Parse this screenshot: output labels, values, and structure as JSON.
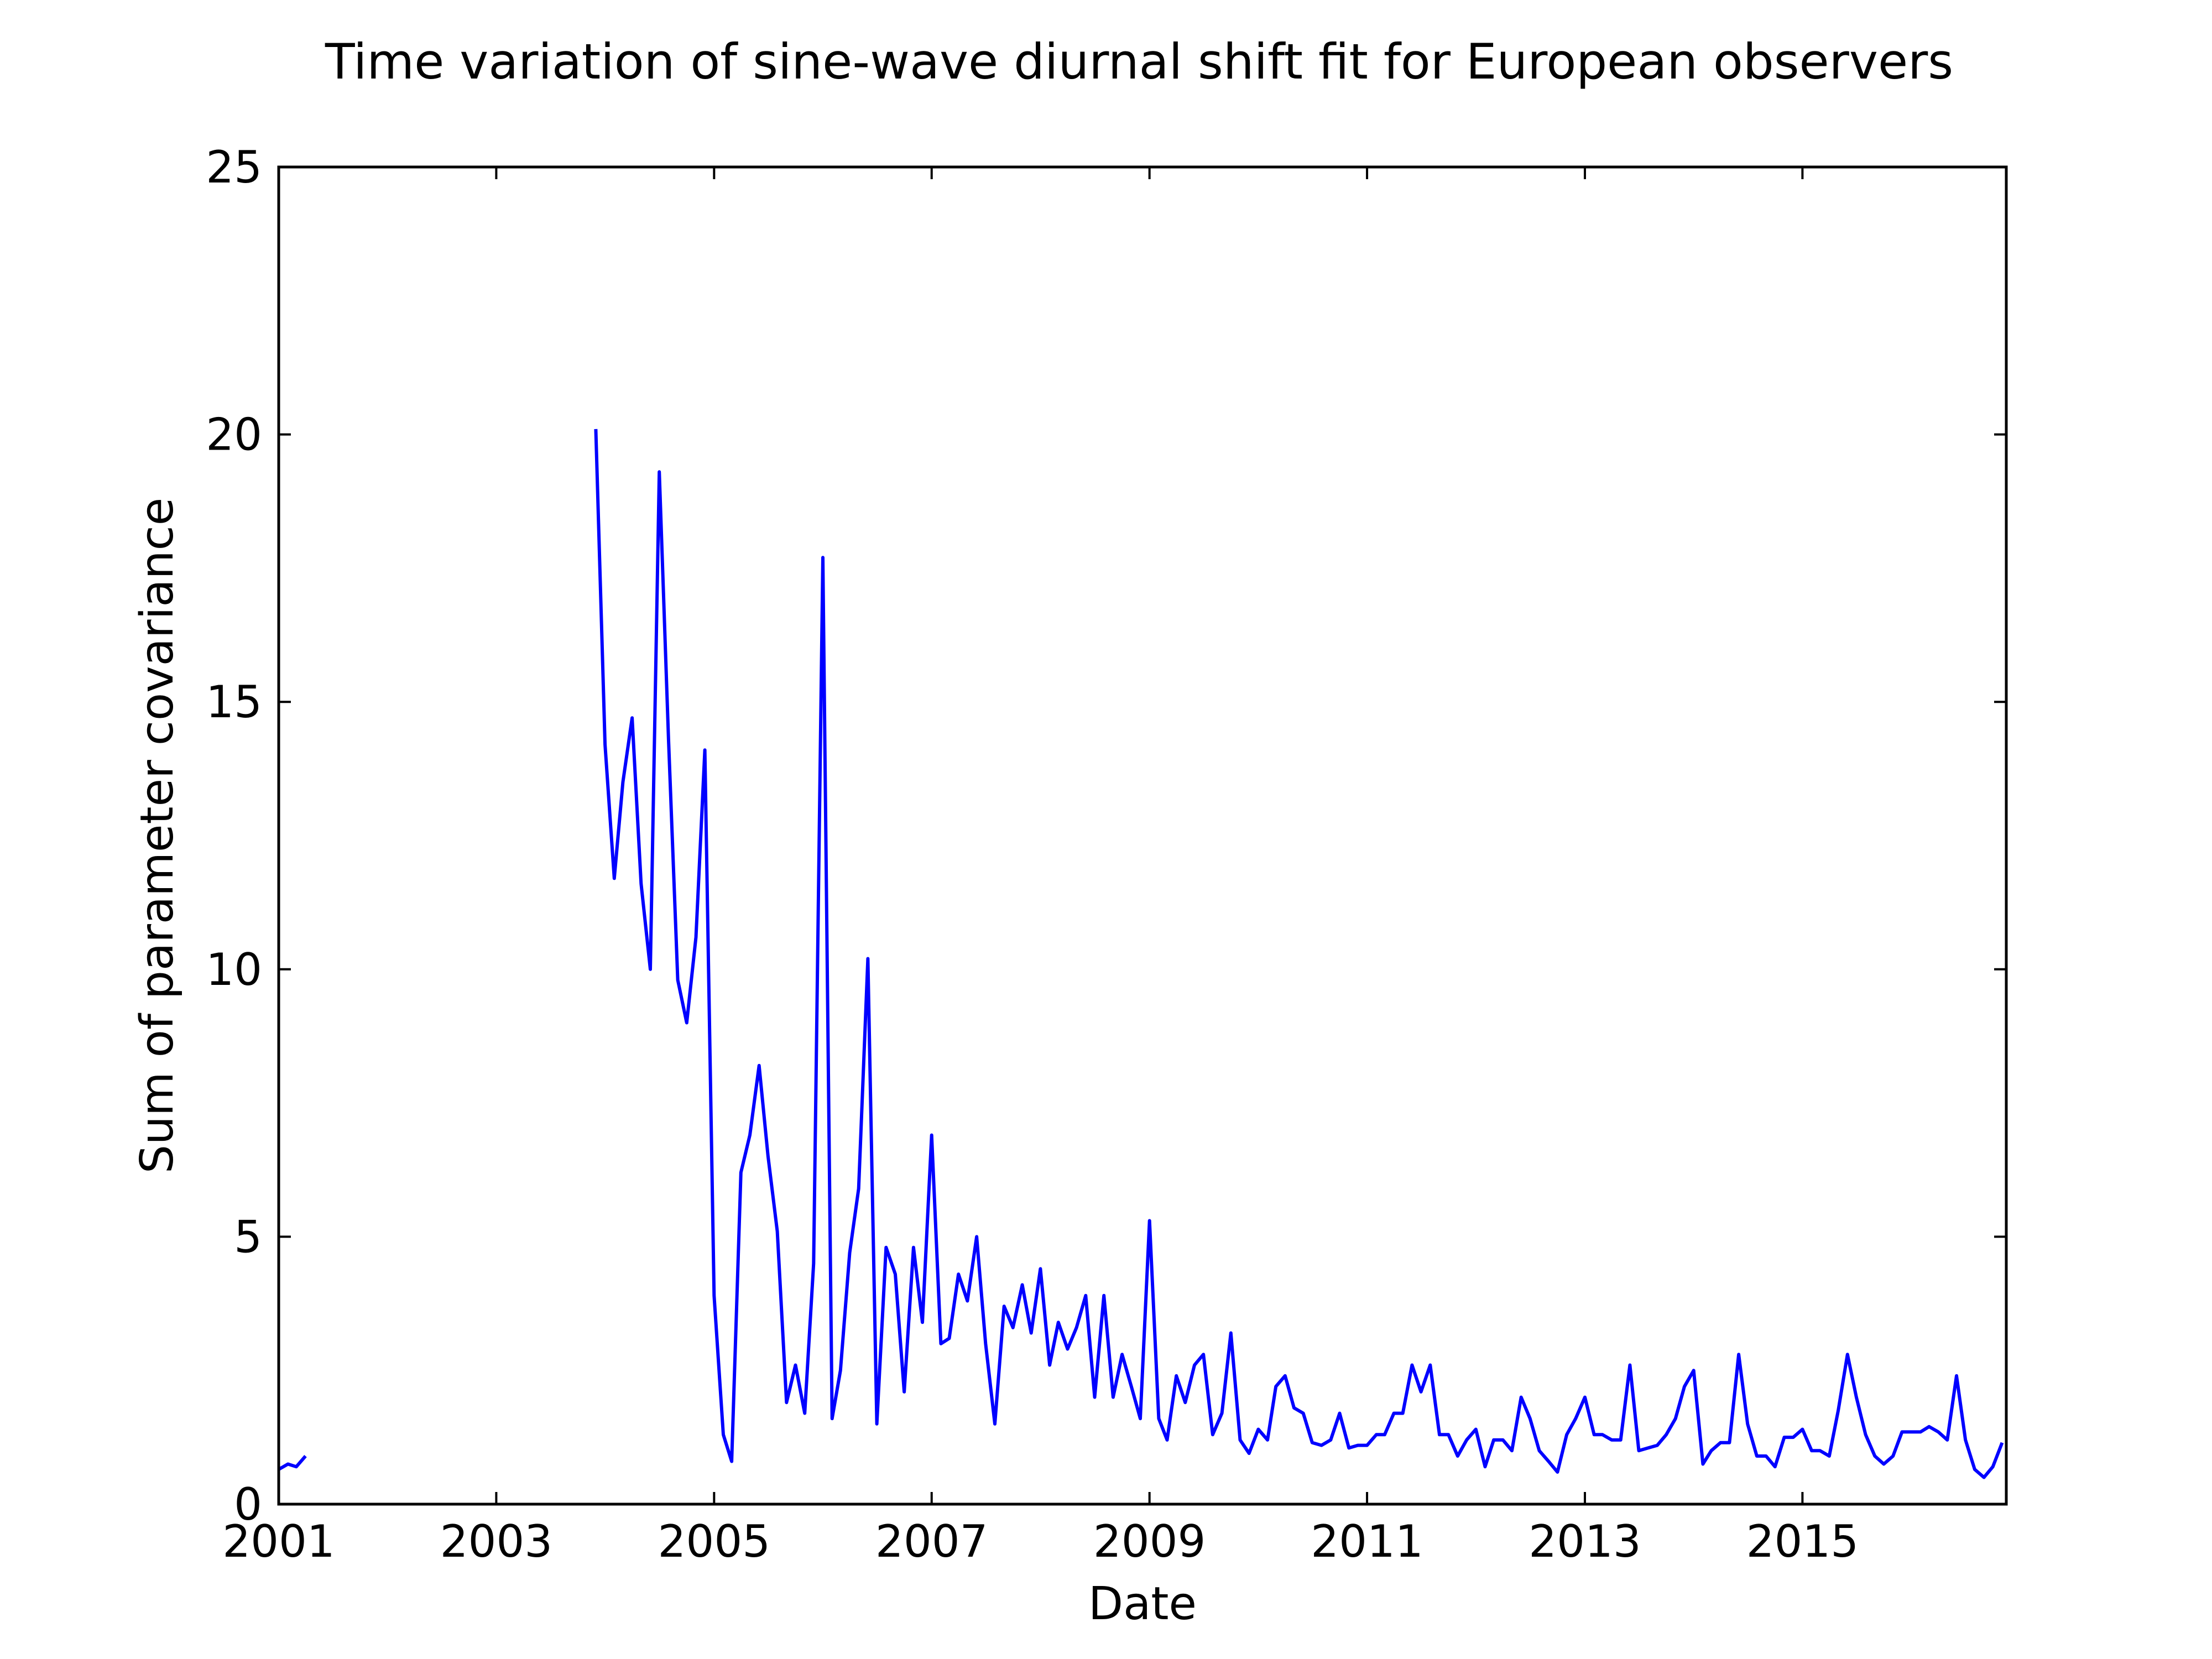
{
  "chart_data": {
    "type": "line",
    "title": "Time variation of sine-wave diurnal shift fit for European observers",
    "xlabel": "Date",
    "ylabel": "Sum of parameter covariance",
    "xlim": [
      "2001-01-01",
      "2016-11-15"
    ],
    "ylim": [
      0,
      25
    ],
    "xticks": [
      "2001",
      "2003",
      "2005",
      "2007",
      "2009",
      "2011",
      "2013",
      "2015"
    ],
    "yticks": [
      0,
      5,
      10,
      15,
      20,
      25
    ],
    "grid": false,
    "legend": "none",
    "series_color": "#0000ff",
    "series": [
      {
        "segments": [
          {
            "x": [
              "2001-01-01",
              "2001-02-01",
              "2001-03-01",
              "2001-04-01"
            ],
            "y": [
              0.65,
              0.75,
              0.7,
              0.9
            ]
          },
          {
            "x": [
              "2003-12-01",
              "2004-01-01",
              "2004-02-01",
              "2004-03-01",
              "2004-04-01",
              "2004-05-01",
              "2004-06-01",
              "2004-07-01",
              "2004-08-01",
              "2004-09-01",
              "2004-10-01",
              "2004-11-01",
              "2004-12-01",
              "2005-01-01",
              "2005-02-01",
              "2005-03-01",
              "2005-04-01",
              "2005-05-01",
              "2005-06-01",
              "2005-07-01",
              "2005-08-01",
              "2005-09-01",
              "2005-10-01",
              "2005-11-01",
              "2005-12-01",
              "2006-01-01",
              "2006-02-01",
              "2006-03-01",
              "2006-04-01",
              "2006-05-01",
              "2006-06-01",
              "2006-07-01",
              "2006-08-01",
              "2006-09-01",
              "2006-10-01",
              "2006-11-01",
              "2006-12-01",
              "2007-01-01",
              "2007-02-01",
              "2007-03-01",
              "2007-04-01",
              "2007-05-01",
              "2007-06-01",
              "2007-07-01",
              "2007-08-01",
              "2007-09-01",
              "2007-10-01",
              "2007-11-01",
              "2007-12-01",
              "2008-01-01",
              "2008-02-01",
              "2008-03-01",
              "2008-04-01",
              "2008-05-01",
              "2008-06-01",
              "2008-07-01",
              "2008-08-01",
              "2008-09-01",
              "2008-10-01",
              "2008-11-01",
              "2008-12-01",
              "2009-01-01",
              "2009-02-01",
              "2009-03-01",
              "2009-04-01",
              "2009-05-01",
              "2009-06-01",
              "2009-07-01",
              "2009-08-01",
              "2009-09-01",
              "2009-10-01",
              "2009-11-01",
              "2009-12-01",
              "2010-01-01",
              "2010-02-01",
              "2010-03-01",
              "2010-04-01",
              "2010-05-01",
              "2010-06-01",
              "2010-07-01",
              "2010-08-01",
              "2010-09-01",
              "2010-10-01",
              "2010-11-01",
              "2010-12-01",
              "2011-01-01",
              "2011-02-01",
              "2011-03-01",
              "2011-04-01",
              "2011-05-01",
              "2011-06-01",
              "2011-07-01",
              "2011-08-01",
              "2011-09-01",
              "2011-10-01",
              "2011-11-01",
              "2011-12-01",
              "2012-01-01",
              "2012-02-01",
              "2012-03-01",
              "2012-04-01",
              "2012-05-01",
              "2012-06-01",
              "2012-07-01",
              "2012-08-01",
              "2012-09-01",
              "2012-10-01",
              "2012-11-01",
              "2012-12-01",
              "2013-01-01",
              "2013-02-01",
              "2013-03-01",
              "2013-04-01",
              "2013-05-01",
              "2013-06-01",
              "2013-07-01",
              "2013-08-01",
              "2013-09-01",
              "2013-10-01",
              "2013-11-01",
              "2013-12-01",
              "2014-01-01",
              "2014-02-01",
              "2014-03-01",
              "2014-04-01",
              "2014-05-01",
              "2014-06-01",
              "2014-07-01",
              "2014-08-01",
              "2014-09-01",
              "2014-10-01",
              "2014-11-01",
              "2014-12-01",
              "2015-01-01",
              "2015-02-01",
              "2015-03-01",
              "2015-04-01",
              "2015-05-01",
              "2015-06-01",
              "2015-07-01",
              "2015-08-01",
              "2015-09-01",
              "2015-10-01",
              "2015-11-01",
              "2015-12-01",
              "2016-01-01",
              "2016-02-01",
              "2016-03-01",
              "2016-04-01",
              "2016-05-01",
              "2016-06-01",
              "2016-07-01",
              "2016-08-01",
              "2016-09-01",
              "2016-10-01",
              "2016-11-01"
            ],
            "y": [
              20.1,
              14.2,
              11.7,
              13.5,
              14.7,
              11.6,
              10.0,
              19.3,
              14.3,
              9.8,
              9.0,
              10.6,
              14.1,
              3.9,
              1.3,
              0.8,
              6.2,
              6.9,
              8.2,
              6.5,
              5.1,
              1.9,
              2.6,
              1.7,
              4.5,
              17.7,
              1.6,
              2.5,
              4.7,
              5.9,
              10.2,
              1.5,
              4.8,
              4.3,
              2.1,
              4.8,
              3.4,
              6.9,
              3.0,
              3.1,
              4.3,
              3.8,
              5.0,
              3.0,
              1.5,
              3.7,
              3.3,
              4.1,
              3.2,
              4.4,
              2.6,
              3.4,
              2.9,
              3.3,
              3.9,
              2.0,
              3.9,
              2.0,
              2.8,
              2.2,
              1.6,
              5.3,
              1.6,
              1.2,
              2.4,
              1.9,
              2.6,
              2.8,
              1.3,
              1.7,
              3.2,
              1.2,
              0.95,
              1.4,
              1.2,
              2.2,
              2.4,
              1.8,
              1.7,
              1.15,
              1.1,
              1.2,
              1.7,
              1.05,
              1.1,
              1.1,
              1.3,
              1.3,
              1.7,
              1.7,
              2.6,
              2.1,
              2.6,
              1.3,
              1.3,
              0.9,
              1.2,
              1.4,
              0.7,
              1.2,
              1.2,
              1.0,
              2.0,
              1.6,
              1.0,
              0.8,
              0.6,
              1.3,
              1.6,
              2.0,
              1.3,
              1.3,
              1.2,
              1.2,
              2.6,
              1.0,
              1.05,
              1.1,
              1.3,
              1.6,
              2.2,
              2.5,
              0.75,
              1.0,
              1.15,
              1.15,
              2.8,
              1.5,
              0.9,
              0.9,
              0.7,
              1.25,
              1.25,
              1.4,
              1.0,
              1.0,
              0.9,
              1.75,
              2.8,
              2.0,
              1.3,
              0.9,
              0.75,
              0.9,
              1.35,
              1.35,
              1.35,
              1.45,
              1.35,
              1.2,
              2.4,
              1.2,
              0.65,
              0.5,
              0.7,
              1.15
            ]
          }
        ]
      }
    ]
  }
}
